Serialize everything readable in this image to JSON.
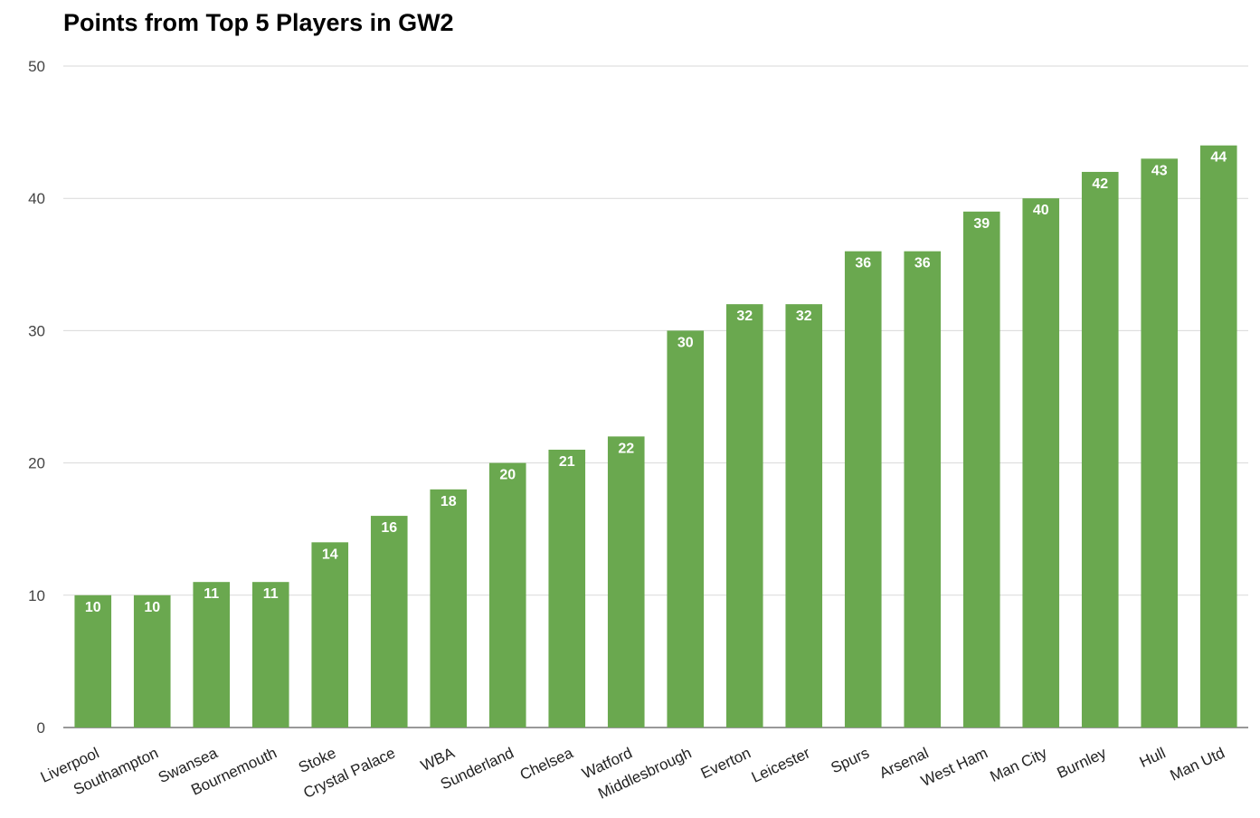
{
  "chart_data": {
    "type": "bar",
    "title": "Points from Top 5 Players in GW2",
    "xlabel": "",
    "ylabel": "",
    "ylim": [
      0,
      50
    ],
    "yticks": [
      0,
      10,
      20,
      30,
      40,
      50
    ],
    "grid": true,
    "legend": "none",
    "bar_color": "#6aa84f",
    "categories": [
      "Liverpool",
      "Southampton",
      "Swansea",
      "Bournemouth",
      "Stoke",
      "Crystal Palace",
      "WBA",
      "Sunderland",
      "Chelsea",
      "Watford",
      "Middlesbrough",
      "Everton",
      "Leicester",
      "Spurs",
      "Arsenal",
      "West Ham",
      "Man City",
      "Burnley",
      "Hull",
      "Man Utd"
    ],
    "values": [
      10,
      10,
      11,
      11,
      14,
      16,
      18,
      20,
      21,
      22,
      30,
      32,
      32,
      36,
      36,
      39,
      40,
      42,
      43,
      44
    ]
  }
}
